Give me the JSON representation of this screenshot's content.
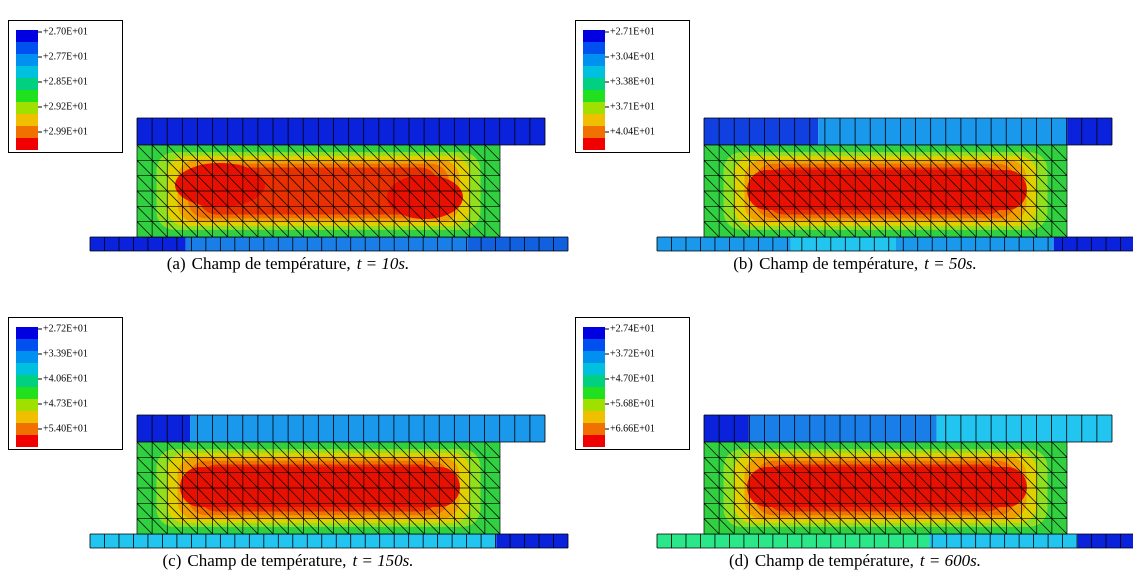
{
  "panels": [
    {
      "legend": [
        "+2.70E+01",
        "+2.77E+01",
        "+2.85E+01",
        "+2.92E+01",
        "+2.99E+01"
      ],
      "caption": {
        "label": "(a)",
        "text": "Champ de température,",
        "math": "t = 10s."
      }
    },
    {
      "legend": [
        "+2.71E+01",
        "+3.04E+01",
        "+3.38E+01",
        "+3.71E+01",
        "+4.04E+01"
      ],
      "caption": {
        "label": "(b)",
        "text": "Champ de température,",
        "math": "t = 50s."
      }
    },
    {
      "legend": [
        "+2.72E+01",
        "+3.39E+01",
        "+4.06E+01",
        "+4.73E+01",
        "+5.40E+01"
      ],
      "caption": {
        "label": "(c)",
        "text": "Champ de température,",
        "math": "t = 150s."
      }
    },
    {
      "legend": [
        "+2.74E+01",
        "+3.72E+01",
        "+4.70E+01",
        "+5.68E+01",
        "+6.66E+01"
      ],
      "caption": {
        "label": "(d)",
        "text": "Champ de température,",
        "math": "t = 600s."
      }
    }
  ]
}
